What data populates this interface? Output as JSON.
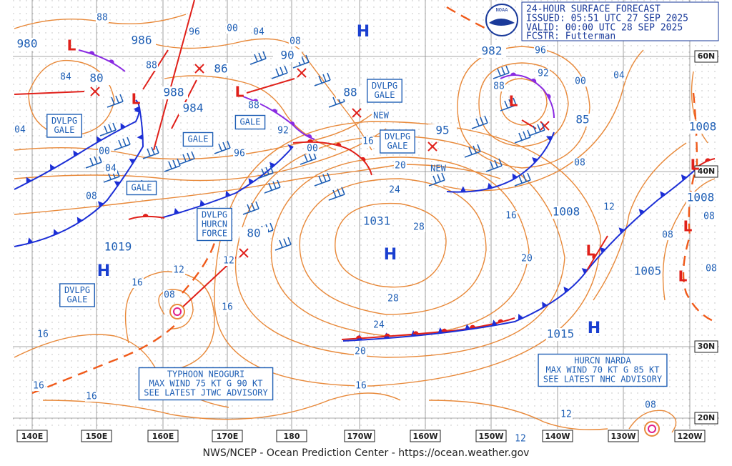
{
  "header": {
    "title": "24-HOUR SURFACE FORECAST",
    "issued": "ISSUED: 05:51 UTC 27 SEP 2025",
    "valid": "VALID:  00:00 UTC 28 SEP 2025",
    "forecaster": "FCSTR:  Futterman",
    "logo": "NOAA"
  },
  "longitudes": [
    "140E",
    "150E",
    "160E",
    "170E",
    "180",
    "170W",
    "160W",
    "150W",
    "140W",
    "130W",
    "120W"
  ],
  "latitudes": [
    "60N",
    "40N",
    "30N",
    "20N"
  ],
  "high_centers": [
    "H",
    "H",
    "H",
    "H"
  ],
  "low_centers": [
    "L",
    "L",
    "L",
    "L",
    "L",
    "L",
    "L",
    "L"
  ],
  "central_pressures": [
    "980",
    "986",
    "80",
    "988",
    "984",
    "90",
    "86",
    "88",
    "982",
    "95",
    "85",
    "1008",
    "1008",
    "1008",
    "1031",
    "1019",
    "80",
    "1005",
    "1015"
  ],
  "isobar_labels": [
    "88",
    "96",
    "00",
    "04",
    "08",
    "84",
    "88",
    "04",
    "00",
    "04",
    "08",
    "92",
    "96",
    "00",
    "88",
    "16",
    "20",
    "24",
    "28",
    "28",
    "24",
    "20",
    "16",
    "16",
    "20",
    "12",
    "08",
    "04",
    "00",
    "96",
    "92",
    "88",
    "12",
    "12",
    "08",
    "16",
    "16",
    "16",
    "16",
    "16",
    "08",
    "08",
    "08",
    "12",
    "12",
    "08"
  ],
  "notes": [
    "NEW",
    "NEW"
  ],
  "boxes": [
    [
      "DVLPG",
      "GALE"
    ],
    [
      "DVLPG",
      "GALE"
    ],
    [
      "GALE"
    ],
    [
      "GALE"
    ],
    [
      "DVLPG",
      "GALE"
    ],
    [
      "GALE"
    ],
    [
      "DVLPG",
      "HURCN",
      "FORCE"
    ],
    [
      "DVLPG",
      "GALE"
    ],
    [
      "TYPHOON NEOGURI",
      "MAX WIND 75 KT G 90 KT",
      "SEE LATEST JTWC ADVISORY"
    ],
    [
      "HURCN NARDA",
      "MAX WIND 70 KT G 85 KT",
      "SEE LATEST NHC ADVISORY"
    ]
  ],
  "footer": "NWS/NCEP - Ocean Prediction Center - https://ocean.weather.gov"
}
